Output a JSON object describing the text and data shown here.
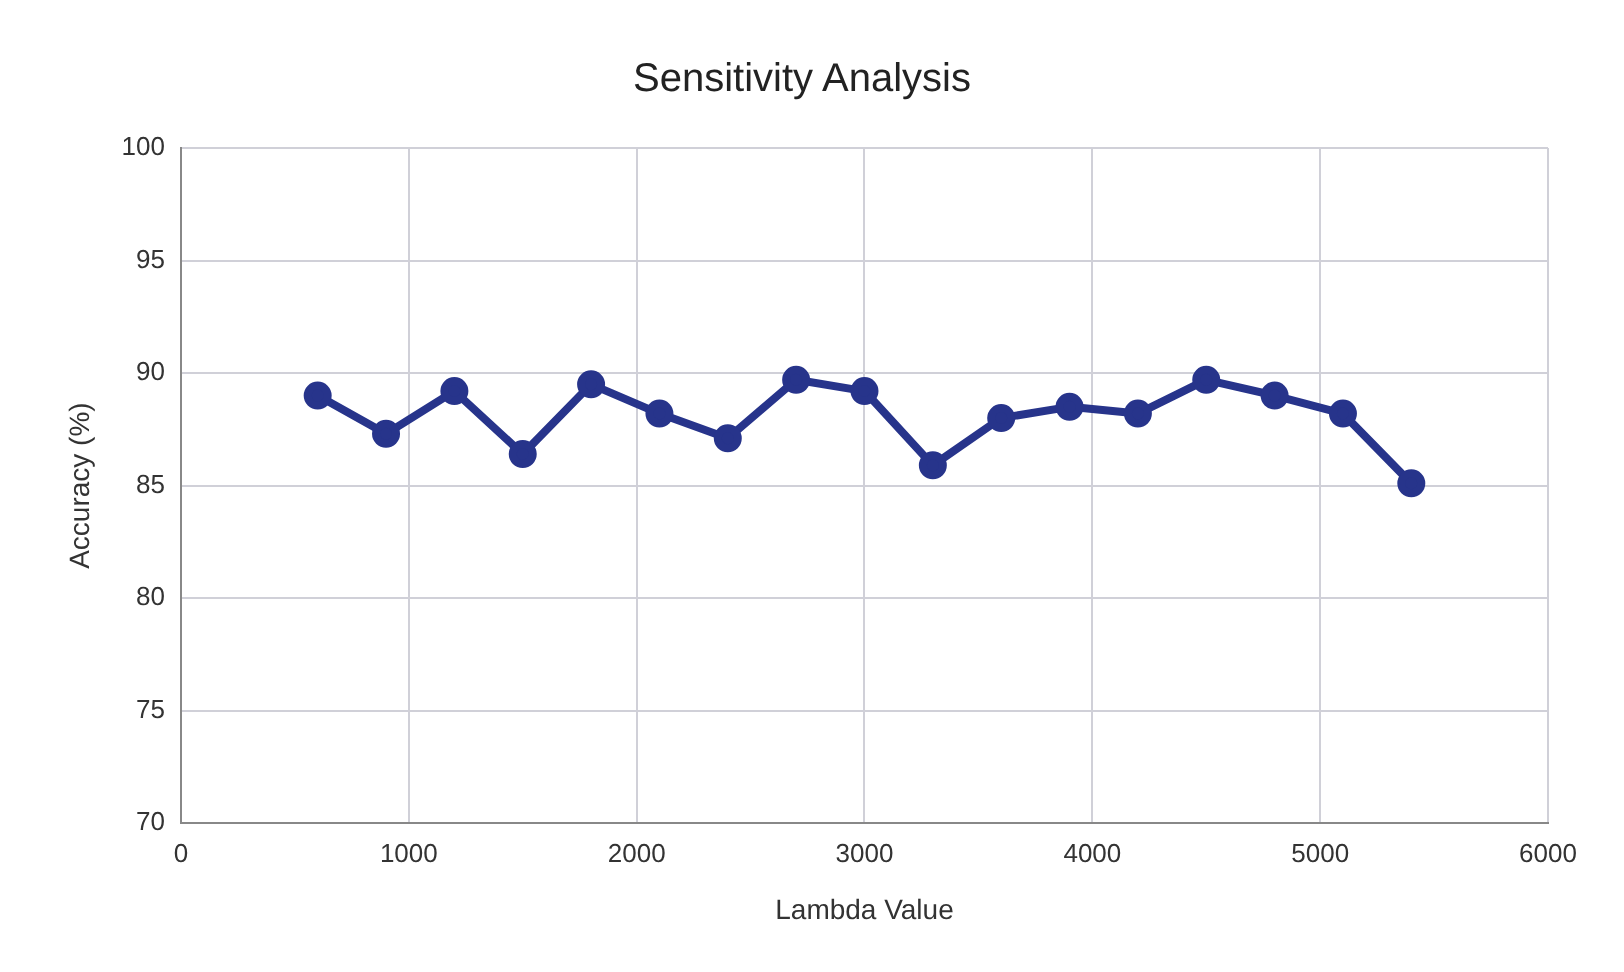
{
  "chart_data": {
    "type": "line",
    "title": "Sensitivity Analysis",
    "xlabel": "Lambda Value",
    "ylabel": "Accuracy (%)",
    "x": [
      600,
      900,
      1200,
      1500,
      1800,
      2100,
      2400,
      2700,
      3000,
      3300,
      3600,
      3900,
      4200,
      4500,
      4800,
      5100,
      5400
    ],
    "series": [
      {
        "color": "#27348b",
        "values": [
          89.0,
          87.3,
          89.2,
          86.4,
          89.5,
          88.2,
          87.1,
          89.7,
          89.2,
          85.9,
          88.0,
          88.5,
          88.2,
          89.7,
          89.0,
          88.2,
          85.1
        ]
      }
    ],
    "xlim": [
      0,
      6000
    ],
    "xticks": [
      0,
      1000,
      2000,
      3000,
      4000,
      5000,
      6000
    ],
    "ylim": [
      70,
      100
    ],
    "yticks": [
      70,
      75,
      80,
      85,
      90,
      95,
      100
    ],
    "grid": true,
    "legend": false,
    "marker": "circle",
    "line_style": "solid"
  }
}
